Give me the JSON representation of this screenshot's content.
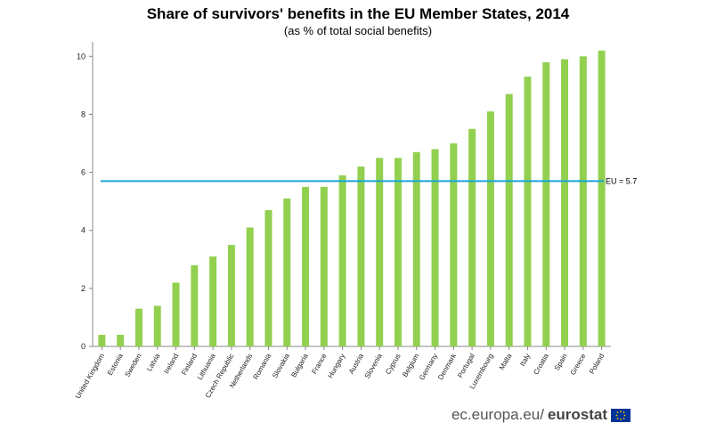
{
  "chart_data": {
    "type": "bar",
    "title": "Share of survivors' benefits in the EU Member States, 2014",
    "subtitle": "(as % of total social benefits)",
    "categories": [
      "United Kingdom",
      "Estonia",
      "Sweden",
      "Latvia",
      "Ireland",
      "Finland",
      "Lithuania",
      "Czech Republic",
      "Netherlands",
      "Romania",
      "Slovakia",
      "Bulgaria",
      "France",
      "Hungary",
      "Austria",
      "Slovenia",
      "Cyprus",
      "Belgium",
      "Germany",
      "Denmark",
      "Portugal",
      "Luxembourg",
      "Malta",
      "Italy",
      "Croatia",
      "Spain",
      "Greece",
      "Poland"
    ],
    "values": [
      0.4,
      0.4,
      1.3,
      1.4,
      2.2,
      2.8,
      3.1,
      3.5,
      4.1,
      4.7,
      5.1,
      5.5,
      5.5,
      5.9,
      6.2,
      6.5,
      6.5,
      6.7,
      6.8,
      7.0,
      7.5,
      8.1,
      8.7,
      9.3,
      9.8,
      9.9,
      10.0,
      10.2
    ],
    "yticks": [
      0,
      2,
      4,
      6,
      8,
      10
    ],
    "ylim": [
      0,
      10.5
    ],
    "grid": false,
    "reference_line": {
      "label": "EU = 5.7",
      "value": 5.7,
      "color": "#1aa4d9"
    },
    "bar_color": "#92d050"
  },
  "footer": {
    "site": "ec.europa.eu/",
    "brand": "eurostat"
  }
}
